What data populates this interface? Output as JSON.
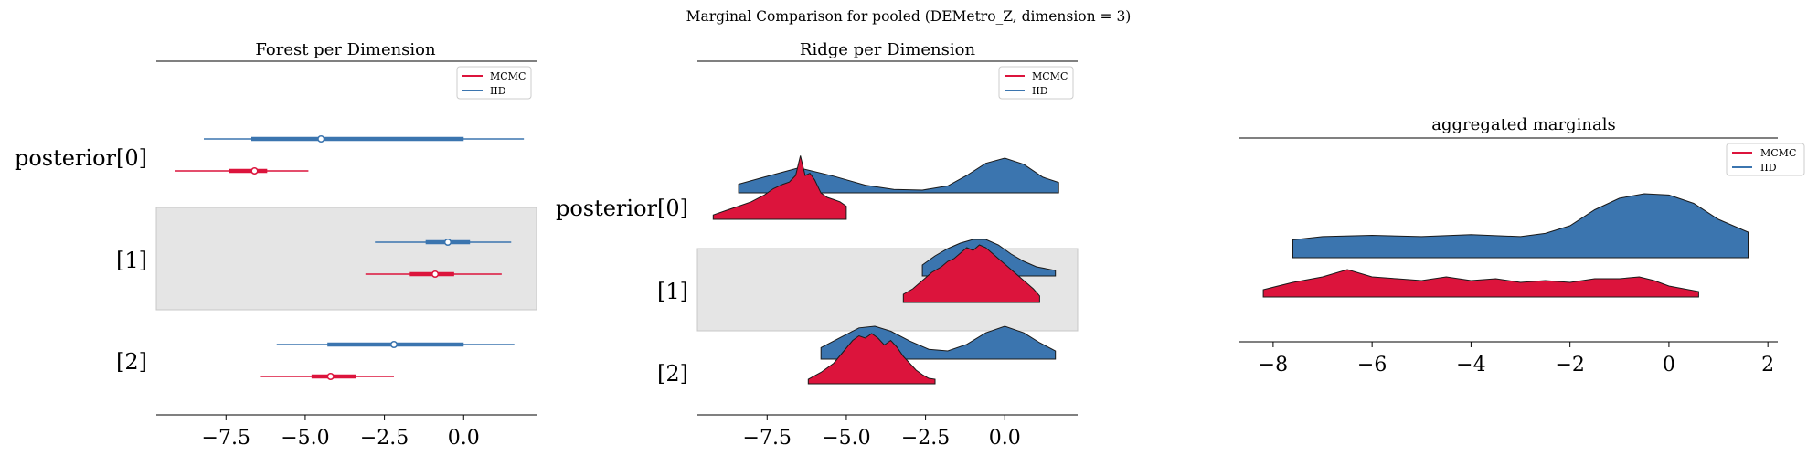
{
  "suptitle": "Marginal Comparison for pooled (DEMetro_Z, dimension = 3)",
  "colors": {
    "mcmc": "#dc143c",
    "iid": "#3b75af",
    "band": "#e5e5e5"
  },
  "legend": {
    "mcmc": "MCMC",
    "iid": "IID"
  },
  "chart_data": [
    {
      "type": "forest",
      "title": "Forest per Dimension",
      "xlim": [
        -9.7,
        2.3
      ],
      "xticks": [
        -7.5,
        -5.0,
        -2.5,
        0.0
      ],
      "xtick_labels": [
        "−7.5",
        "−5.0",
        "−2.5",
        "0.0"
      ],
      "legend_placement": "top-right",
      "row_labels": [
        "posterior[0]",
        "[1]",
        "[2]"
      ],
      "series": [
        {
          "name": "IID",
          "color": "#3b75af",
          "rows": [
            {
              "lo": -8.2,
              "q25": -6.7,
              "median": -4.5,
              "q75": 0.0,
              "hi": 1.9
            },
            {
              "lo": -2.8,
              "q25": -1.2,
              "median": -0.5,
              "q75": 0.2,
              "hi": 1.5
            },
            {
              "lo": -5.9,
              "q25": -4.3,
              "median": -2.2,
              "q75": 0.0,
              "hi": 1.6
            }
          ]
        },
        {
          "name": "MCMC",
          "color": "#dc143c",
          "rows": [
            {
              "lo": -9.1,
              "q25": -7.4,
              "median": -6.6,
              "q75": -6.2,
              "hi": -4.9
            },
            {
              "lo": -3.1,
              "q25": -1.7,
              "median": -0.9,
              "q75": -0.3,
              "hi": 1.2
            },
            {
              "lo": -6.4,
              "q25": -4.8,
              "median": -4.2,
              "q75": -3.4,
              "hi": -2.2
            }
          ]
        }
      ]
    },
    {
      "type": "ridge",
      "title": "Ridge per Dimension",
      "xlim": [
        -9.7,
        2.3
      ],
      "xticks": [
        -7.5,
        -5.0,
        -2.5,
        0.0
      ],
      "xtick_labels": [
        "−7.5",
        "−5.0",
        "−2.5",
        "0.0"
      ],
      "legend_placement": "top-right",
      "row_labels": [
        "posterior[0]",
        "[1]",
        "[2]"
      ],
      "series": [
        {
          "name": "IID",
          "color": "#3b75af",
          "rows": [
            {
              "x": [
                -8.4,
                -7.6,
                -6.5,
                -5.4,
                -4.4,
                -3.5,
                -2.6,
                -1.8,
                -1.2,
                -0.6,
                0.0,
                0.6,
                1.2,
                1.7
              ],
              "y": [
                0.25,
                0.45,
                0.72,
                0.48,
                0.22,
                0.1,
                0.08,
                0.2,
                0.5,
                0.85,
                1.0,
                0.82,
                0.45,
                0.3
              ]
            },
            {
              "x": [
                -2.6,
                -2.2,
                -1.8,
                -1.4,
                -1.0,
                -0.6,
                -0.2,
                0.2,
                0.6,
                1.0,
                1.6
              ],
              "y": [
                0.3,
                0.55,
                0.75,
                0.9,
                1.0,
                1.0,
                0.85,
                0.6,
                0.4,
                0.25,
                0.15
              ]
            },
            {
              "x": [
                -5.8,
                -5.2,
                -4.6,
                -4.1,
                -3.6,
                -3.0,
                -2.4,
                -1.8,
                -1.2,
                -0.6,
                0.0,
                0.6,
                1.1,
                1.6
              ],
              "y": [
                0.35,
                0.65,
                0.95,
                1.0,
                0.85,
                0.55,
                0.3,
                0.25,
                0.45,
                0.8,
                1.0,
                0.8,
                0.5,
                0.25
              ]
            }
          ]
        },
        {
          "name": "MCMC",
          "color": "#dc143c",
          "rows": [
            {
              "x": [
                -9.2,
                -8.8,
                -8.4,
                -8.0,
                -7.6,
                -7.3,
                -7.0,
                -6.8,
                -6.6,
                -6.45,
                -6.3,
                -6.15,
                -6.0,
                -5.8,
                -5.6,
                -5.4,
                -5.2,
                -5.0
              ],
              "y": [
                0.1,
                0.2,
                0.3,
                0.4,
                0.55,
                0.7,
                0.8,
                0.85,
                1.0,
                1.45,
                1.0,
                1.05,
                0.9,
                0.6,
                0.5,
                0.45,
                0.4,
                0.3
              ]
            },
            {
              "x": [
                -3.2,
                -2.9,
                -2.6,
                -2.3,
                -2.0,
                -1.8,
                -1.6,
                -1.4,
                -1.2,
                -1.0,
                -0.8,
                -0.6,
                -0.4,
                -0.2,
                0.0,
                0.3,
                0.6,
                0.9,
                1.1
              ],
              "y": [
                0.15,
                0.25,
                0.4,
                0.55,
                0.65,
                0.75,
                0.8,
                0.9,
                1.0,
                0.95,
                1.05,
                1.0,
                0.9,
                0.8,
                0.7,
                0.55,
                0.4,
                0.25,
                0.12
              ]
            },
            {
              "x": [
                -6.2,
                -5.8,
                -5.4,
                -5.1,
                -4.8,
                -4.6,
                -4.4,
                -4.2,
                -4.0,
                -3.8,
                -3.6,
                -3.4,
                -3.2,
                -3.0,
                -2.8,
                -2.6,
                -2.4,
                -2.2
              ],
              "y": [
                0.1,
                0.25,
                0.45,
                0.7,
                0.95,
                1.05,
                1.0,
                1.1,
                1.0,
                0.85,
                0.95,
                0.8,
                0.6,
                0.45,
                0.3,
                0.2,
                0.12,
                0.1
              ]
            }
          ]
        }
      ]
    },
    {
      "type": "ridge",
      "title": "aggregated marginals",
      "xlim": [
        -8.7,
        2.2
      ],
      "xticks": [
        -8,
        -6,
        -4,
        -2,
        0,
        2
      ],
      "xtick_labels": [
        "−8",
        "−6",
        "−4",
        "−2",
        "0",
        "2"
      ],
      "legend_placement": "top-right",
      "series": [
        {
          "name": "IID",
          "color": "#3b75af",
          "x": [
            -7.6,
            -7.0,
            -6.0,
            -5.0,
            -4.0,
            -3.0,
            -2.5,
            -2.0,
            -1.5,
            -1.0,
            -0.5,
            0.0,
            0.5,
            1.0,
            1.6
          ],
          "y": [
            0.28,
            0.33,
            0.35,
            0.33,
            0.36,
            0.33,
            0.38,
            0.5,
            0.75,
            0.93,
            1.0,
            0.98,
            0.85,
            0.6,
            0.4
          ]
        },
        {
          "name": "MCMC",
          "color": "#dc143c",
          "x": [
            -8.2,
            -7.6,
            -7.0,
            -6.5,
            -6.0,
            -5.5,
            -5.0,
            -4.5,
            -4.0,
            -3.5,
            -3.0,
            -2.5,
            -2.0,
            -1.5,
            -1.0,
            -0.6,
            -0.3,
            0.0,
            0.6
          ],
          "y": [
            0.2,
            0.4,
            0.55,
            0.75,
            0.55,
            0.5,
            0.45,
            0.55,
            0.45,
            0.5,
            0.4,
            0.45,
            0.4,
            0.5,
            0.5,
            0.55,
            0.45,
            0.3,
            0.15
          ]
        }
      ]
    }
  ]
}
